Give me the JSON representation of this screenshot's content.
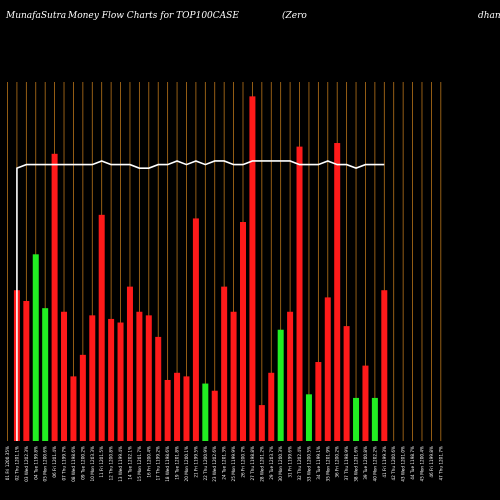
{
  "header": {
    "site": "MunafaSutra",
    "title": "Money Flow  Charts for TOP100CASE",
    "subtitle_left": "(Zero",
    "subtitle_right": "dhan"
  },
  "colors": {
    "background": "#000000",
    "up": "#ff1a1a",
    "down": "#22ee22",
    "gridline": "#b8741a",
    "flow_line": "#ffffff"
  },
  "chart_data": {
    "type": "bar",
    "title": "MunafaSutra  Money Flow  Charts for TOP100CASE",
    "ylim": [
      0,
      100
    ],
    "grid": true,
    "categories": [
      "01 Fri 1200.35%",
      "02 Thu 1201.1%",
      "03 Wed 1202.3%",
      "04 Tue 1199.8%",
      "05 Mon 1200.6%",
      "06 Fri 1201.4%",
      "07 Thu 1199.7%",
      "08 Wed 1198.6%",
      "09 Tue 1200.2%",
      "10 Mon 1203.3%",
      "11 Fri 1201.5%",
      "12 Thu 1200.8%",
      "13 Wed 1199.4%",
      "14 Tue 1202.1%",
      "15 Mon 1201.7%",
      "16 Fri 1200.4%",
      "17 Thu 1199.2%",
      "18 Wed 1198.6%",
      "19 Tue 1201.8%",
      "20 Mon 1200.1%",
      "21 Fri 1199.5%",
      "22 Thu 1200.9%",
      "23 Wed 1202.6%",
      "24 Tue 1201.3%",
      "25 Mon 1199.9%",
      "26 Fri 1200.7%",
      "27 Thu 1198.8%",
      "28 Wed 1201.2%",
      "29 Tue 1203.7%",
      "30 Mon 1200.3%",
      "31 Fri 1199.6%",
      "32 Thu 1202.4%",
      "33 Wed 1200.5%",
      "34 Tue 1199.1%",
      "35 Mon 1201.9%",
      "36 Fri 1200.2%",
      "37 Thu 1198.9%",
      "38 Wed 1201.6%",
      "39 Tue 1200.8%",
      "40 Mon 1202.2%",
      "41 Fri 1199.3%",
      "42 Thu 1200.6%",
      "43 Wed 1201.0%",
      "44 Tue 1198.7%",
      "45 Mon 1200.4%",
      "46 Fri 1199.8%",
      "47 Thu 1201.7%"
    ],
    "values": [
      0,
      42,
      39,
      52,
      37,
      80,
      36,
      18,
      24,
      35,
      63,
      34,
      33,
      43,
      36,
      35,
      29,
      17,
      19,
      18,
      62,
      16,
      14,
      43,
      36,
      61,
      96,
      10,
      19,
      31,
      36,
      82,
      13,
      22,
      40,
      83,
      32,
      12,
      21,
      12,
      42,
      0,
      0,
      0,
      0,
      0,
      0
    ],
    "bar_colors": [
      "up",
      "up",
      "up",
      "down",
      "down",
      "up",
      "up",
      "up",
      "up",
      "up",
      "up",
      "up",
      "up",
      "up",
      "up",
      "up",
      "up",
      "up",
      "up",
      "up",
      "up",
      "down",
      "up",
      "up",
      "up",
      "up",
      "up",
      "up",
      "up",
      "down",
      "up",
      "up",
      "down",
      "up",
      "up",
      "up",
      "up",
      "down",
      "up",
      "down",
      "up",
      "up",
      "up",
      "up",
      "up",
      "up",
      "up"
    ],
    "flow_line": [
      null,
      76,
      77,
      77,
      77,
      77,
      77,
      77,
      77,
      77,
      78,
      77,
      77,
      77,
      76,
      76,
      77,
      77,
      78,
      77,
      78,
      77,
      78,
      78,
      77,
      77,
      78,
      78,
      78,
      78,
      78,
      77,
      77,
      77,
      78,
      77,
      77,
      76,
      77,
      77,
      77,
      null,
      null,
      null,
      null,
      null,
      null
    ]
  }
}
